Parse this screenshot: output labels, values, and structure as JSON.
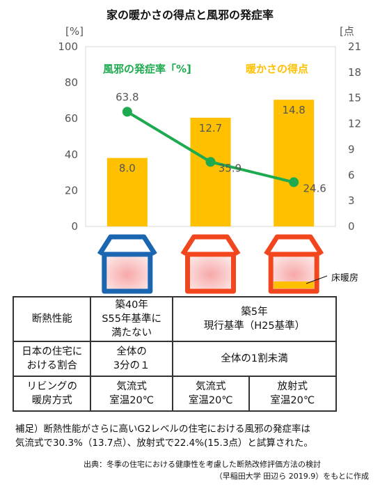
{
  "chart_data": {
    "type": "bar+line",
    "title": "家の暖かさの得点と風邪の発症率",
    "categories": [
      "",
      "",
      ""
    ],
    "left_axis": {
      "unit": "[%]",
      "ticks": [
        0,
        20,
        40,
        60,
        80,
        100
      ],
      "ylim": [
        0,
        100
      ]
    },
    "right_axis": {
      "unit": "[点",
      "ticks": [
        0,
        3,
        6,
        9,
        12,
        15,
        18,
        21
      ],
      "ylim": [
        0,
        21
      ]
    },
    "series": [
      {
        "name": "暖かさの得点",
        "kind": "bar",
        "axis": "right",
        "color": "#FFC000",
        "values": [
          8.0,
          12.7,
          14.8
        ],
        "labels": [
          "8.0",
          "12.7",
          "14.8"
        ]
      },
      {
        "name": "風邪の発症率「%]",
        "kind": "line",
        "axis": "left",
        "color": "#1EAA4F",
        "values": [
          63.8,
          35.9,
          24.6
        ],
        "labels": [
          "63.8",
          "35.9",
          "24.6"
        ]
      }
    ],
    "grid": false
  },
  "houses": [
    {
      "color": "#1B66B0",
      "floor_heating": false
    },
    {
      "color": "#F2461E",
      "floor_heating": false
    },
    {
      "color": "#F2461E",
      "floor_heating": true
    }
  ],
  "house_label": "床暖房",
  "table": {
    "row1": {
      "header": "断熱性能",
      "c1": [
        "築40年",
        "S55年基準に",
        "満たない"
      ],
      "c2": [
        "築5年",
        "現行基準（H25基準）"
      ]
    },
    "row2": {
      "header": [
        "日本の住宅に",
        "おける割合"
      ],
      "c1": [
        "全体の",
        "3分の１"
      ],
      "c2": "全体の1割未満"
    },
    "row3": {
      "header": [
        "リビングの",
        "暖房方式"
      ],
      "c1": [
        "気流式",
        "室温20℃"
      ],
      "c2": [
        "気流式",
        "室温20℃"
      ],
      "c3": [
        "放射式",
        "室温20℃"
      ]
    }
  },
  "note": [
    "補足）断熱性能がさらに高いG2レベルの住宅における風邪の発症率は",
    "気流式で30.3%（13.7点）、放射式で22.4%(15.3点）と試算された。"
  ],
  "source": [
    "出典：冬季の住宅における健康性を考慮した断熱改修評価方法の検討",
    "（早稲田大学 田辺ら 2019.9）をもとに作成"
  ]
}
